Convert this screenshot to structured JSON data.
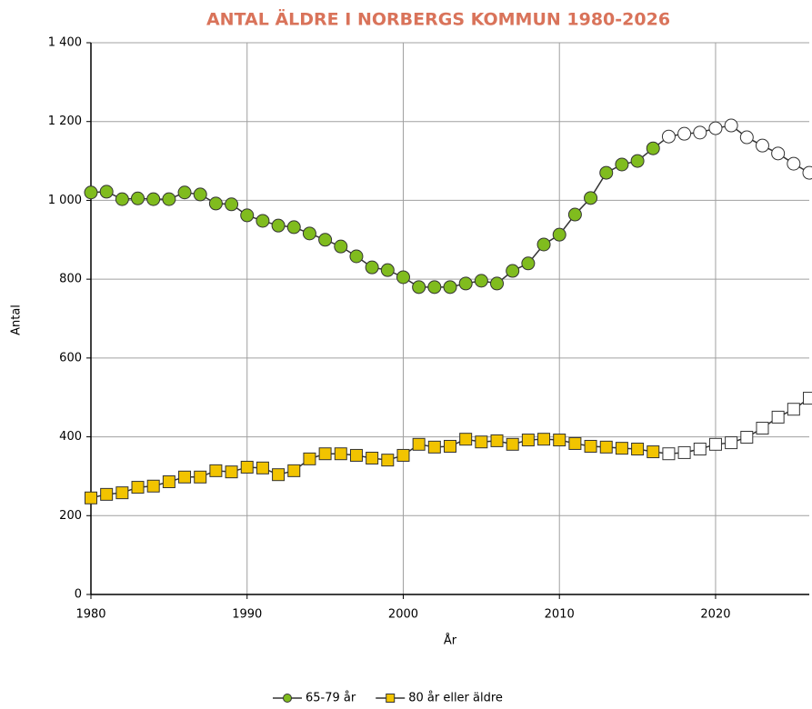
{
  "chart_data": {
    "type": "line",
    "title": "ANTAL ÄLDRE I NORBERGS KOMMUN 1980-2026",
    "y_label": "Antal",
    "x_label": "År",
    "x": [
      1980,
      1981,
      1982,
      1983,
      1984,
      1985,
      1986,
      1987,
      1988,
      1989,
      1990,
      1991,
      1992,
      1993,
      1994,
      1995,
      1996,
      1997,
      1998,
      1999,
      2000,
      2001,
      2002,
      2003,
      2004,
      2005,
      2006,
      2007,
      2008,
      2009,
      2010,
      2011,
      2012,
      2013,
      2014,
      2015,
      2016,
      2017,
      2018,
      2019,
      2020,
      2021,
      2022,
      2023,
      2024,
      2025,
      2026
    ],
    "series": [
      {
        "name": "65-79 år",
        "color": "#80bc1e",
        "marker": "circle",
        "values": [
          1020,
          1022,
          1003,
          1005,
          1003,
          1003,
          1020,
          1015,
          992,
          990,
          962,
          948,
          936,
          932,
          916,
          900,
          883,
          858,
          830,
          823,
          805,
          780,
          780,
          780,
          789,
          796,
          789,
          821,
          840,
          888,
          913,
          964,
          1006,
          1070,
          1091,
          1100,
          1132,
          1162,
          1169,
          1172,
          1183,
          1190,
          1160,
          1139,
          1119,
          1093,
          1070
        ]
      },
      {
        "name": "80 år eller äldre",
        "color": "#f2c400",
        "marker": "square",
        "values": [
          245,
          254,
          258,
          272,
          275,
          286,
          298,
          298,
          314,
          311,
          323,
          321,
          304,
          314,
          344,
          357,
          357,
          353,
          346,
          341,
          353,
          381,
          374,
          376,
          394,
          387,
          390,
          381,
          392,
          394,
          392,
          383,
          376,
          374,
          371,
          369,
          362,
          357,
          360,
          369,
          381,
          385,
          399,
          422,
          450,
          470,
          498
        ]
      }
    ],
    "forecast_start": 2017,
    "xlim": [
      1980,
      2026
    ],
    "xticks": [
      1980,
      1990,
      2000,
      2010,
      2020
    ],
    "ylim": [
      0,
      1400
    ],
    "yticks": [
      0,
      200,
      400,
      600,
      800,
      {
        "value": 1000,
        "label": "1 000"
      },
      {
        "value": 1200,
        "label": "1 200"
      },
      {
        "value": 1400,
        "label": "1 400"
      }
    ],
    "grid": true,
    "legend": "bottom"
  }
}
